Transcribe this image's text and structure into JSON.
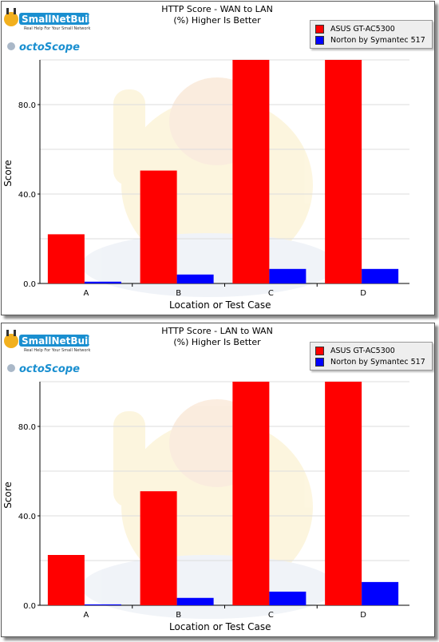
{
  "brand": {
    "name": "SmallNetBuilder",
    "tagline": "Real Help For Your Small Network",
    "partner": "octoScope"
  },
  "colors": {
    "series1": "#ff0000",
    "series2": "#0000ff"
  },
  "chart_data": [
    {
      "type": "bar",
      "title": "HTTP Score - WAN to LAN",
      "subtitle": "(%) Higher Is Better",
      "xlabel": "Location or Test Case",
      "ylabel": "Score",
      "categories": [
        "A",
        "B",
        "C",
        "D"
      ],
      "ylim": [
        0,
        100
      ],
      "yticks": [
        "0.0",
        "40.0",
        "80.0"
      ],
      "grid": true,
      "legend_position": "top-right",
      "series": [
        {
          "name": "ASUS GT-AC5300",
          "values": [
            22,
            50.5,
            100,
            100
          ]
        },
        {
          "name": "Norton by Symantec 517",
          "values": [
            0.8,
            4,
            6.5,
            6.5
          ]
        }
      ]
    },
    {
      "type": "bar",
      "title": "HTTP Score - LAN to WAN",
      "subtitle": "(%) Higher Is Better",
      "xlabel": "Location or Test Case",
      "ylabel": "Score",
      "categories": [
        "A",
        "B",
        "C",
        "D"
      ],
      "ylim": [
        0,
        100
      ],
      "yticks": [
        "0.0",
        "40.0",
        "80.0"
      ],
      "grid": true,
      "legend_position": "top-right",
      "series": [
        {
          "name": "ASUS GT-AC5300",
          "values": [
            22.5,
            51,
            100,
            100
          ]
        },
        {
          "name": "Norton by Symantec 517",
          "values": [
            0.4,
            3.3,
            6.1,
            10.4
          ]
        }
      ]
    }
  ]
}
